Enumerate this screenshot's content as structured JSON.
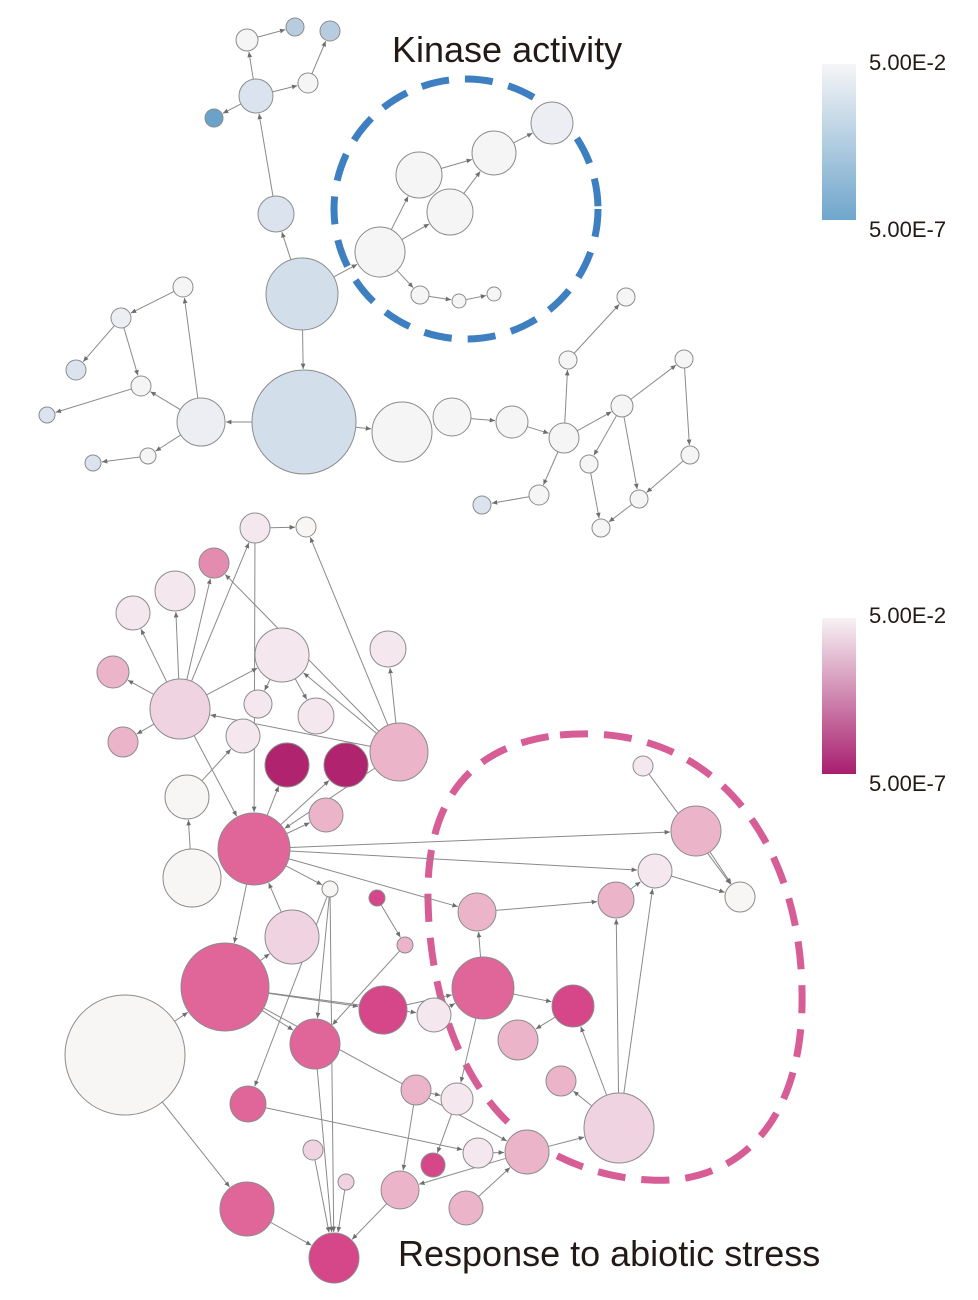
{
  "kinase_panel": {
    "title": "Kinase activity",
    "legend": {
      "max_label": "5.00E-2",
      "min_label": "5.00E-7",
      "color_high_p": "#f6f5f7",
      "color_low_p": "#6fa6cb"
    },
    "highlight_color": "#3d7fc0",
    "node_colors": {
      "very_light": "#f6f5f6",
      "light": "#eceef3",
      "pale_blue": "#dbe3ee",
      "blue": "#d3deeb",
      "mid_blue": "#b8cce0",
      "dark_blue": "#6aa2c9"
    },
    "edge_color": "#8a8a8a"
  },
  "stress_panel": {
    "title": "Response to abiotic stress",
    "legend": {
      "max_label": "5.00E-2",
      "min_label": "5.00E-7",
      "color_high_p": "#f7f2f4",
      "color_low_p": "#a81e6e"
    },
    "highlight_color": "#d65d95",
    "node_colors": {
      "white": "#f7f6f5",
      "very_light": "#f5e7ee",
      "light": "#efd3e0",
      "pink": "#ebb4c9",
      "mid": "#e48cb0",
      "hot": "#e0669a",
      "magenta": "#d6478a",
      "dark": "#b0236f"
    },
    "edge_color": "#8a8a8a"
  }
}
